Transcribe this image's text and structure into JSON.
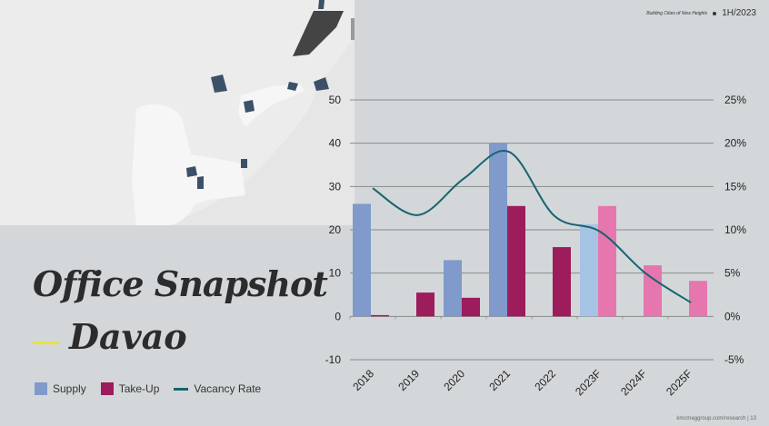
{
  "header": {
    "tagline": "Building Cities of New Heights",
    "period": "1H/2023"
  },
  "title": {
    "line1": "Office Snapshot",
    "line2": "Davao"
  },
  "footer": "kmcmaggroup.com/research | 13",
  "colors": {
    "supply": "#7f9acb",
    "supply_forecast": "#a7c3e3",
    "takeup": "#9c1c5c",
    "takeup_forecast": "#e676ae",
    "vacancy": "#17646f",
    "accent": "#e8e23a"
  },
  "chart_data": {
    "type": "bar",
    "categories": [
      "2018",
      "2019",
      "2020",
      "2021",
      "2022",
      "2023F",
      "2024F",
      "2025F"
    ],
    "series": [
      {
        "name": "Supply",
        "type": "bar",
        "axis": "left",
        "values": [
          26,
          null,
          13,
          40,
          null,
          21.3,
          null,
          null
        ]
      },
      {
        "name": "Take-Up",
        "type": "bar",
        "axis": "left",
        "values": [
          0.3,
          5.5,
          4.3,
          25.5,
          16,
          25.5,
          11.8,
          8.2
        ]
      },
      {
        "name": "Vacancy Rate",
        "type": "line",
        "axis": "right",
        "values": [
          14.8,
          11.7,
          15.9,
          19.0,
          11.6,
          9.8,
          5.0,
          1.6
        ]
      }
    ],
    "forecast_categories": [
      "2023F",
      "2024F",
      "2025F"
    ],
    "left_axis": {
      "ylim": [
        -10,
        50
      ],
      "ticks": [
        "-10",
        "0",
        "10",
        "20",
        "30",
        "40",
        "50"
      ]
    },
    "right_axis": {
      "ylim": [
        -5,
        25
      ],
      "ticks": [
        "-5%",
        "0%",
        "5%",
        "10%",
        "15%",
        "20%",
        "25%"
      ]
    },
    "grid": true,
    "legend": "bottom-left"
  }
}
